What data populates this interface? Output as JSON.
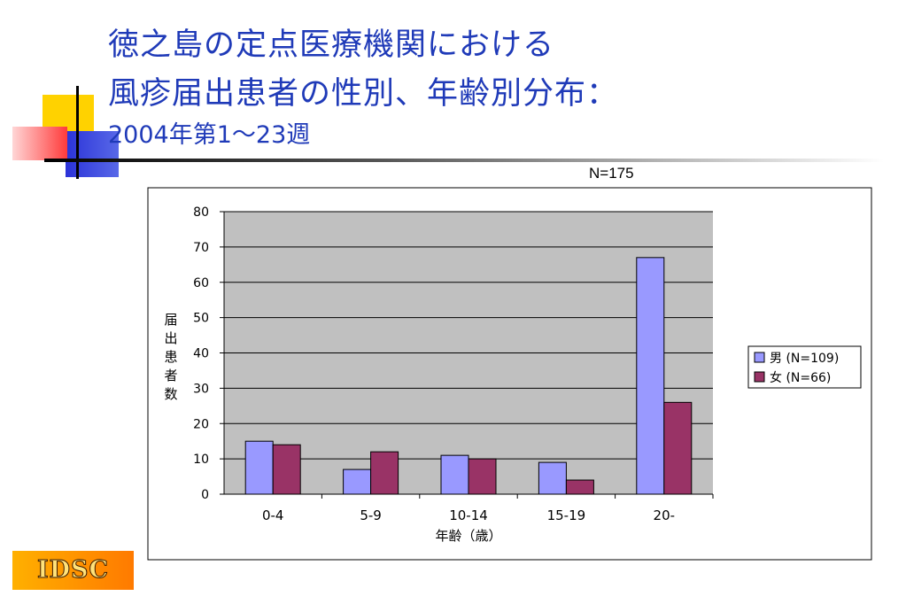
{
  "slide": {
    "title_line1": "徳之島の定点医療機関における",
    "title_line2": "風疹届出患者の性別、年齢別分布：",
    "title_line3": "2004年第1～23週",
    "total_n": "N=175",
    "logo": "IDSC"
  },
  "colors": {
    "title": "#1f3ab8",
    "male": "#9999ff",
    "female": "#993366",
    "plot_bg": "#c0c0c0"
  },
  "chart_data": {
    "type": "bar",
    "categories": [
      "0-4",
      "5-9",
      "10-14",
      "15-19",
      "20-"
    ],
    "series": [
      {
        "name": "男 (N=109)",
        "values": [
          15,
          7,
          11,
          9,
          67
        ]
      },
      {
        "name": "女 (N=66)",
        "values": [
          14,
          12,
          10,
          4,
          26
        ]
      }
    ],
    "yticks": [
      "0",
      "10",
      "20",
      "30",
      "40",
      "50",
      "60",
      "70",
      "80"
    ],
    "ylim": [
      0,
      80
    ],
    "ylabel": "届出患者数",
    "xlabel": "年齢（歳）",
    "grid": true,
    "legend_position": "right"
  }
}
